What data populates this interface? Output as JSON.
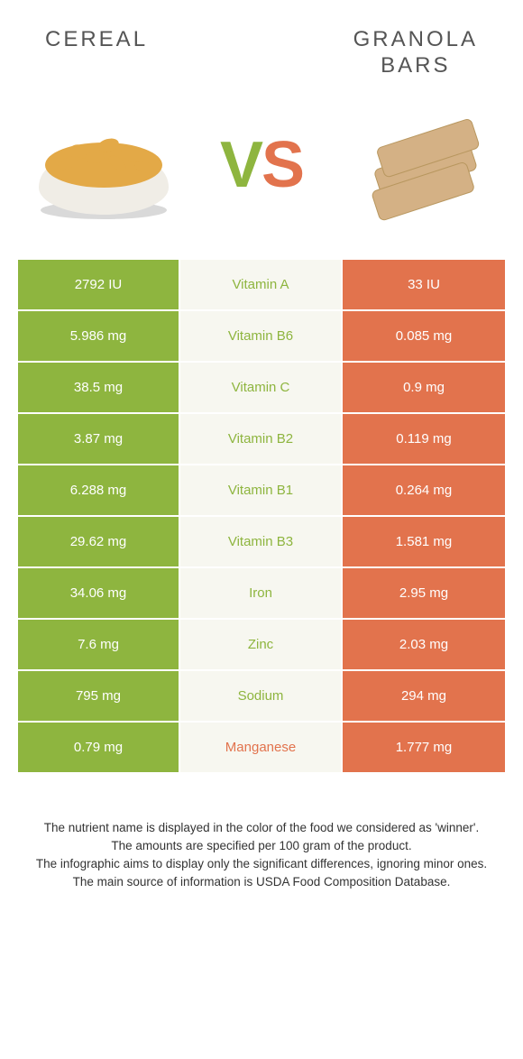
{
  "colors": {
    "left_bg": "#8eb53f",
    "right_bg": "#e2734d",
    "mid_bg": "#f7f7f0",
    "left_text": "#8eb53f",
    "right_text": "#e2734d",
    "header_text": "#555555",
    "cell_text": "#ffffff",
    "footer_text": "#333333"
  },
  "header": {
    "left": "CEREAL",
    "right_line1": "GRANOLA",
    "right_line2": "BARS"
  },
  "vs": {
    "v": "V",
    "s": "S"
  },
  "rows": [
    {
      "left": "2792 IU",
      "name": "Vitamin A",
      "right": "33 IU",
      "winner": "left"
    },
    {
      "left": "5.986 mg",
      "name": "Vitamin B6",
      "right": "0.085 mg",
      "winner": "left"
    },
    {
      "left": "38.5 mg",
      "name": "Vitamin C",
      "right": "0.9 mg",
      "winner": "left"
    },
    {
      "left": "3.87 mg",
      "name": "Vitamin B2",
      "right": "0.119 mg",
      "winner": "left"
    },
    {
      "left": "6.288 mg",
      "name": "Vitamin B1",
      "right": "0.264 mg",
      "winner": "left"
    },
    {
      "left": "29.62 mg",
      "name": "Vitamin B3",
      "right": "1.581 mg",
      "winner": "left"
    },
    {
      "left": "34.06 mg",
      "name": "Iron",
      "right": "2.95 mg",
      "winner": "left"
    },
    {
      "left": "7.6 mg",
      "name": "Zinc",
      "right": "2.03 mg",
      "winner": "left"
    },
    {
      "left": "795 mg",
      "name": "Sodium",
      "right": "294 mg",
      "winner": "left"
    },
    {
      "left": "0.79 mg",
      "name": "Manganese",
      "right": "1.777 mg",
      "winner": "right"
    }
  ],
  "footer": {
    "l1": "The nutrient name is displayed in the color of the food we considered as 'winner'.",
    "l2": "The amounts are specified per 100 gram of the product.",
    "l3": "The infographic aims to display only the significant differences, ignoring minor ones.",
    "l4": "The main source of information is USDA Food Composition Database."
  },
  "illustrations": {
    "cereal": {
      "bowl": "#f0ede6",
      "flakes": "#e3a947",
      "shadow": "#d9d9d9"
    },
    "bars": {
      "fill": "#d4b185",
      "grain": "#b8975f"
    }
  }
}
